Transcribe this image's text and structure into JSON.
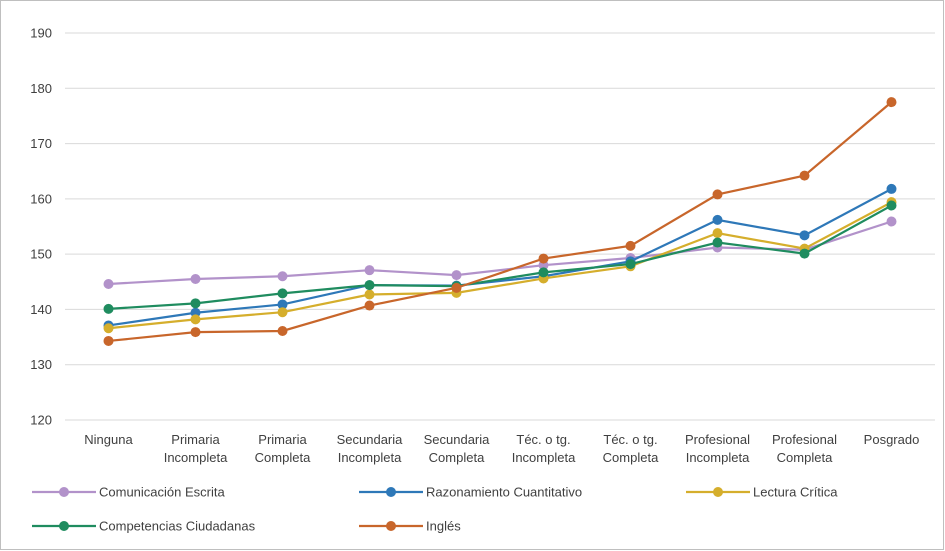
{
  "chart_data": {
    "type": "line",
    "categories": [
      "Ninguna",
      "Primaria\nIncompleta",
      "Primaria\nCompleta",
      "Secundaria\nIncompleta",
      "Secundaria\nCompleta",
      "Téc. o tg.\nIncompleta",
      "Téc. o tg.\nCompleta",
      "Profesional\nIncompleta",
      "Profesional\nCompleta",
      "Posgrado"
    ],
    "series": [
      {
        "name": "Comunicación Escrita",
        "color": "#b292ca",
        "values": [
          144.6,
          145.5,
          146.0,
          147.1,
          146.2,
          148.0,
          149.3,
          151.2,
          150.8,
          155.9
        ]
      },
      {
        "name": "Razonamiento Cuantitativo",
        "color": "#2e78b8",
        "values": [
          137.1,
          139.4,
          140.9,
          144.4,
          144.3,
          146.0,
          148.7,
          156.2,
          153.4,
          161.8
        ]
      },
      {
        "name": "Lectura Crítica",
        "color": "#d5ae2c",
        "values": [
          136.6,
          138.2,
          139.5,
          142.7,
          143.0,
          145.6,
          147.8,
          153.8,
          151.0,
          159.4
        ]
      },
      {
        "name": "Competencias Ciudadanas",
        "color": "#1f8c5f",
        "values": [
          140.1,
          141.1,
          142.9,
          144.4,
          144.2,
          146.7,
          148.2,
          152.1,
          150.1,
          158.8
        ]
      },
      {
        "name": "Inglés",
        "color": "#c8662b",
        "values": [
          134.3,
          135.9,
          136.1,
          140.7,
          143.9,
          149.2,
          151.5,
          160.8,
          164.2,
          177.5
        ]
      }
    ],
    "ylim": [
      120,
      190
    ],
    "yticks": [
      120,
      130,
      140,
      150,
      160,
      170,
      180,
      190
    ],
    "grid": true,
    "legend": "bottom"
  }
}
